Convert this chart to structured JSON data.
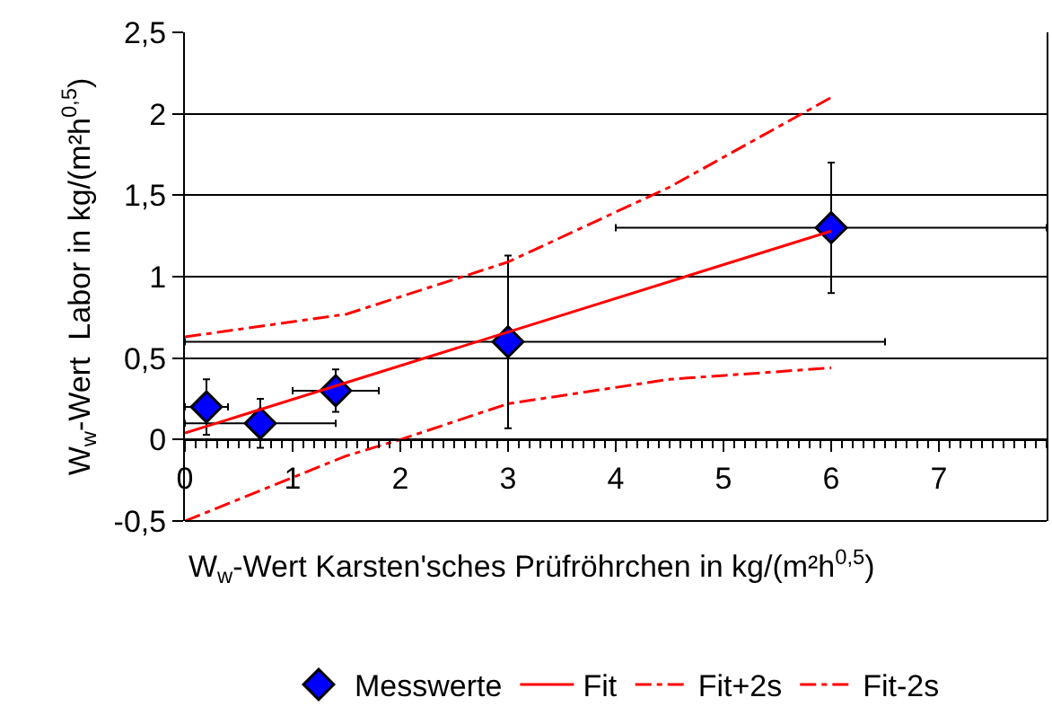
{
  "chart_data": {
    "type": "scatter",
    "xlabel": "W$_{w}$-Wert Karsten'sches Prüfröhrchen in kg/(m²h$^{0,5}$)",
    "ylabel": "W$_{w}$-Wert  Labor in kg/(m²h$^{0,5}$)",
    "xlim": [
      0,
      8
    ],
    "xticks": [
      0,
      1,
      2,
      3,
      4,
      5,
      6,
      7
    ],
    "ylim": [
      -0.5,
      2.5
    ],
    "yticks": [
      {
        "value": -0.5,
        "label": "-0,5"
      },
      0,
      {
        "value": 0.5,
        "label": "0,5"
      },
      1,
      {
        "value": 1.5,
        "label": "1,5"
      },
      2,
      {
        "value": 2.5,
        "label": "2,5"
      }
    ],
    "grid": "y",
    "legend": "bottom",
    "series": [
      {
        "name": "Messwerte",
        "marker": "diamond",
        "color": "#0000ff",
        "x": [
          0.2,
          0.7,
          1.4,
          3,
          6
        ],
        "values": [
          0.2,
          0.1,
          0.3,
          0.6,
          1.3
        ],
        "errors": [
          0.17,
          0.15,
          0.13,
          0.53,
          0.4
        ],
        "xerrors": [
          0.2,
          0.7,
          0.4,
          [
            0,
            6.5
          ],
          [
            4,
            8
          ]
        ]
      },
      {
        "name": "Fit",
        "type": "line",
        "line_style": "solid",
        "color": "#ff0000",
        "x": [
          0,
          6
        ],
        "values": [
          0.04,
          1.28
        ]
      },
      {
        "name": "Fit+2s",
        "type": "line",
        "line_style": "dashed",
        "color": "#ff0000",
        "x": [
          0,
          1.5,
          3,
          4.5,
          6
        ],
        "values": [
          0.63,
          0.77,
          1.09,
          1.55,
          2.1
        ]
      },
      {
        "name": "Fit-2s",
        "type": "line",
        "line_style": "dashed",
        "color": "#ff0000",
        "x": [
          0,
          1.5,
          2,
          3,
          4.5,
          6
        ],
        "values": [
          -0.5,
          -0.1,
          0.0,
          0.22,
          0.37,
          0.44
        ]
      }
    ]
  }
}
